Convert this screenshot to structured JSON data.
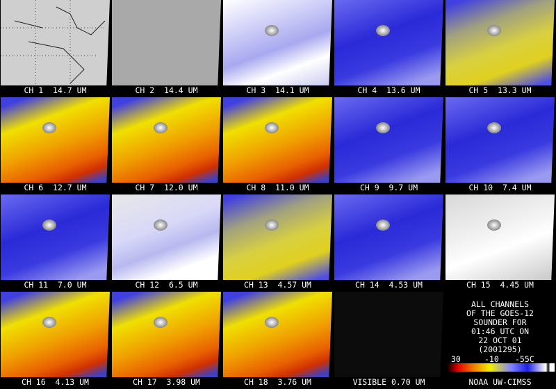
{
  "panels": [
    {
      "label": "CH 1  14.7 UM"
    },
    {
      "label": "CH 2  14.4 UM"
    },
    {
      "label": "CH 3  14.1 UM"
    },
    {
      "label": "CH 4  13.6 UM"
    },
    {
      "label": "CH 5  13.3 UM"
    },
    {
      "label": "CH 6  12.7 UM"
    },
    {
      "label": "CH 7  12.0 UM"
    },
    {
      "label": "CH 8  11.0 UM"
    },
    {
      "label": "CH 9  9.7 UM"
    },
    {
      "label": "CH 10  7.4 UM"
    },
    {
      "label": "CH 11  7.0 UM"
    },
    {
      "label": "CH 12  6.5 UM"
    },
    {
      "label": "CH 13  4.57 UM"
    },
    {
      "label": "CH 14  4.53 UM"
    },
    {
      "label": "CH 15  4.45 UM"
    },
    {
      "label": "CH 16  4.13 UM"
    },
    {
      "label": "CH 17  3.98 UM"
    },
    {
      "label": "CH 18  3.76 UM"
    },
    {
      "label": "VISIBLE 0.70 UM"
    }
  ],
  "info": {
    "lines": [
      "ALL CHANNELS",
      "OF THE GOES-12",
      "SOUNDER FOR",
      "01:46 UTC ON",
      "22 OCT 01",
      "(2001295)"
    ],
    "colorbar_labels": [
      "30",
      "-10",
      "-55C"
    ],
    "credit": "NOAA UW-CIMSS"
  }
}
